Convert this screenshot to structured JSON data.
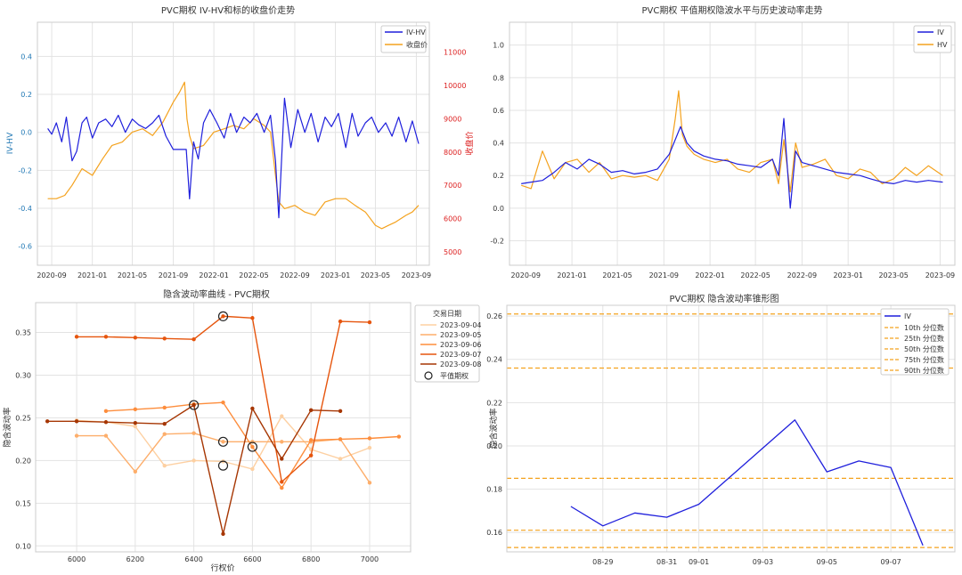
{
  "chart_data": [
    {
      "type": "line",
      "title": "PVC期权 IV-HV和标的收盘价走势",
      "ylabel": "IV-HV",
      "y2label": "收盘价",
      "xlim": [
        "2020-07-20",
        "2023-10-10"
      ],
      "ylim": [
        -0.7,
        0.58
      ],
      "y2lim": [
        4600,
        11900
      ],
      "x_ticks": [
        "2020-09",
        "2021-01",
        "2021-05",
        "2021-09",
        "2022-01",
        "2022-05",
        "2022-09",
        "2023-01",
        "2023-05",
        "2023-09"
      ],
      "y_ticks": [
        -0.6,
        -0.4,
        -0.2,
        0.0,
        0.2,
        0.4
      ],
      "y2_ticks": [
        5000,
        6000,
        7000,
        8000,
        9000,
        10000,
        11000
      ],
      "y_tick_labels": [
        "-0.6",
        "-0.4",
        "-0.2",
        "0.0",
        "0.2",
        "0.4"
      ],
      "y2_tick_labels": [
        "5000",
        "6000",
        "7000",
        "8000",
        "9000",
        "10000",
        "11000"
      ],
      "legend_position": "top-right",
      "grid": true,
      "series": [
        {
          "name": "IV-HV",
          "axis": "left",
          "color": "#1f1fdc",
          "x": [
            "2020-08-20",
            "2020-09-01",
            "2020-09-15",
            "2020-10-01",
            "2020-10-15",
            "2020-11-01",
            "2020-11-15",
            "2020-12-01",
            "2020-12-15",
            "2021-01-01",
            "2021-01-20",
            "2021-02-10",
            "2021-03-01",
            "2021-03-20",
            "2021-04-10",
            "2021-05-01",
            "2021-05-20",
            "2021-06-10",
            "2021-07-01",
            "2021-07-20",
            "2021-08-10",
            "2021-09-01",
            "2021-09-20",
            "2021-10-10",
            "2021-10-20",
            "2021-11-01",
            "2021-11-15",
            "2021-12-01",
            "2021-12-20",
            "2022-01-10",
            "2022-02-01",
            "2022-02-20",
            "2022-03-10",
            "2022-04-01",
            "2022-04-20",
            "2022-05-10",
            "2022-06-01",
            "2022-06-20",
            "2022-07-05",
            "2022-07-15",
            "2022-08-01",
            "2022-08-20",
            "2022-09-10",
            "2022-10-01",
            "2022-10-20",
            "2022-11-10",
            "2022-12-01",
            "2022-12-20",
            "2023-01-10",
            "2023-02-01",
            "2023-02-20",
            "2023-03-10",
            "2023-04-01",
            "2023-04-20",
            "2023-05-10",
            "2023-06-01",
            "2023-06-20",
            "2023-07-10",
            "2023-08-01",
            "2023-08-20",
            "2023-09-08"
          ],
          "y": [
            0.02,
            -0.01,
            0.05,
            -0.05,
            0.08,
            -0.15,
            -0.1,
            0.05,
            0.08,
            -0.03,
            0.05,
            0.07,
            0.03,
            0.09,
            0.0,
            0.07,
            0.04,
            0.02,
            0.05,
            0.09,
            -0.02,
            -0.09,
            -0.09,
            -0.09,
            -0.35,
            -0.05,
            -0.14,
            0.05,
            0.12,
            0.05,
            -0.03,
            0.1,
            0.0,
            0.08,
            0.05,
            0.1,
            0.0,
            0.09,
            -0.15,
            -0.45,
            0.18,
            -0.08,
            0.12,
            0.0,
            0.1,
            -0.05,
            0.08,
            0.03,
            0.1,
            -0.08,
            0.1,
            -0.02,
            0.05,
            0.08,
            0.0,
            0.05,
            -0.02,
            0.08,
            -0.05,
            0.06,
            -0.06
          ]
        },
        {
          "name": "收盘价",
          "axis": "right",
          "color": "#f4a21e",
          "x": [
            "2020-08-20",
            "2020-09-15",
            "2020-10-10",
            "2020-11-01",
            "2020-12-01",
            "2021-01-01",
            "2021-02-01",
            "2021-03-01",
            "2021-04-01",
            "2021-05-01",
            "2021-06-01",
            "2021-07-01",
            "2021-08-01",
            "2021-09-01",
            "2021-09-20",
            "2021-10-05",
            "2021-10-12",
            "2021-10-20",
            "2021-11-01",
            "2021-12-01",
            "2022-01-01",
            "2022-02-01",
            "2022-03-01",
            "2022-04-01",
            "2022-05-01",
            "2022-06-01",
            "2022-06-20",
            "2022-07-05",
            "2022-07-15",
            "2022-08-01",
            "2022-09-01",
            "2022-10-01",
            "2022-11-01",
            "2022-12-01",
            "2023-01-01",
            "2023-02-01",
            "2023-03-01",
            "2023-04-01",
            "2023-05-01",
            "2023-05-20",
            "2023-06-10",
            "2023-07-01",
            "2023-08-01",
            "2023-08-20",
            "2023-09-08"
          ],
          "y": [
            6600,
            6600,
            6700,
            7000,
            7500,
            7300,
            7800,
            8200,
            8300,
            8600,
            8700,
            8500,
            8900,
            9500,
            9800,
            10100,
            9000,
            8500,
            8100,
            8200,
            8600,
            8700,
            8800,
            8700,
            9000,
            8800,
            8600,
            7300,
            6500,
            6300,
            6400,
            6200,
            6100,
            6500,
            6600,
            6600,
            6400,
            6200,
            5800,
            5700,
            5800,
            5900,
            6100,
            6200,
            6400
          ]
        }
      ]
    },
    {
      "type": "line",
      "title": "PVC期权 平值期权隐波水平与历史波动率走势",
      "xlim": [
        "2020-07-20",
        "2023-10-10"
      ],
      "ylim": [
        -0.35,
        1.14
      ],
      "x_ticks": [
        "2020-09",
        "2021-01",
        "2021-05",
        "2021-09",
        "2022-01",
        "2022-05",
        "2022-09",
        "2023-01",
        "2023-05",
        "2023-09"
      ],
      "y_ticks": [
        -0.2,
        0.0,
        0.2,
        0.4,
        0.6,
        0.8,
        1.0
      ],
      "y_tick_labels": [
        "-0.2",
        "0.0",
        "0.2",
        "0.4",
        "0.6",
        "0.8",
        "1.0"
      ],
      "legend_position": "top-right",
      "grid": true,
      "series": [
        {
          "name": "IV",
          "color": "#1f1fdc",
          "x": [
            "2020-08-20",
            "2020-09-15",
            "2020-10-15",
            "2020-11-15",
            "2020-12-15",
            "2021-01-15",
            "2021-02-15",
            "2021-03-15",
            "2021-04-15",
            "2021-05-15",
            "2021-06-15",
            "2021-07-15",
            "2021-08-15",
            "2021-09-15",
            "2021-10-01",
            "2021-10-15",
            "2021-11-01",
            "2021-11-20",
            "2021-12-15",
            "2022-01-15",
            "2022-02-15",
            "2022-03-15",
            "2022-04-15",
            "2022-05-15",
            "2022-06-15",
            "2022-07-01",
            "2022-07-15",
            "2022-08-01",
            "2022-08-15",
            "2022-09-01",
            "2022-10-01",
            "2022-11-01",
            "2022-12-01",
            "2023-01-01",
            "2023-02-01",
            "2023-03-01",
            "2023-04-01",
            "2023-05-01",
            "2023-06-01",
            "2023-07-01",
            "2023-08-01",
            "2023-09-08"
          ],
          "y": [
            0.15,
            0.16,
            0.17,
            0.22,
            0.28,
            0.24,
            0.3,
            0.27,
            0.22,
            0.23,
            0.21,
            0.22,
            0.24,
            0.33,
            0.42,
            0.5,
            0.4,
            0.35,
            0.32,
            0.3,
            0.29,
            0.27,
            0.26,
            0.25,
            0.3,
            0.2,
            0.55,
            0.0,
            0.35,
            0.28,
            0.26,
            0.24,
            0.22,
            0.21,
            0.2,
            0.18,
            0.16,
            0.15,
            0.17,
            0.16,
            0.17,
            0.16
          ]
        },
        {
          "name": "HV",
          "color": "#f4a21e",
          "x": [
            "2020-08-20",
            "2020-09-15",
            "2020-10-15",
            "2020-11-15",
            "2020-12-15",
            "2021-01-15",
            "2021-02-15",
            "2021-03-15",
            "2021-04-15",
            "2021-05-15",
            "2021-06-15",
            "2021-07-15",
            "2021-08-15",
            "2021-09-15",
            "2021-10-01",
            "2021-10-10",
            "2021-10-20",
            "2021-11-01",
            "2021-11-20",
            "2021-12-15",
            "2022-01-15",
            "2022-02-15",
            "2022-03-15",
            "2022-04-15",
            "2022-05-15",
            "2022-06-15",
            "2022-07-01",
            "2022-07-15",
            "2022-08-01",
            "2022-08-15",
            "2022-09-01",
            "2022-10-01",
            "2022-11-01",
            "2022-12-01",
            "2023-01-01",
            "2023-02-01",
            "2023-03-01",
            "2023-04-01",
            "2023-05-01",
            "2023-06-01",
            "2023-07-01",
            "2023-08-01",
            "2023-09-08"
          ],
          "y": [
            0.14,
            0.12,
            0.35,
            0.18,
            0.28,
            0.3,
            0.22,
            0.28,
            0.18,
            0.2,
            0.19,
            0.2,
            0.17,
            0.3,
            0.55,
            0.72,
            0.45,
            0.38,
            0.33,
            0.3,
            0.28,
            0.3,
            0.24,
            0.22,
            0.28,
            0.3,
            0.15,
            0.42,
            0.1,
            0.4,
            0.25,
            0.27,
            0.3,
            0.2,
            0.18,
            0.24,
            0.22,
            0.15,
            0.18,
            0.25,
            0.2,
            0.26,
            0.2
          ]
        }
      ]
    },
    {
      "type": "line",
      "title": "隐含波动率曲线 - PVC期权",
      "xlabel": "行权价",
      "ylabel": "隐含波动率",
      "xlim": [
        5860,
        7140
      ],
      "ylim": [
        0.093,
        0.385
      ],
      "x_ticks": [
        6000,
        6200,
        6400,
        6600,
        6800,
        7000
      ],
      "y_ticks": [
        0.1,
        0.15,
        0.2,
        0.25,
        0.3,
        0.35
      ],
      "x_tick_labels": [
        "6000",
        "6200",
        "6400",
        "6600",
        "6800",
        "7000"
      ],
      "y_tick_labels": [
        "0.10",
        "0.15",
        "0.20",
        "0.25",
        "0.30",
        "0.35"
      ],
      "legend_title": "交易日期",
      "legend_position": "right-outside",
      "grid": true,
      "series": [
        {
          "name": "2023-09-04",
          "color": "#fdd0a2",
          "x": [
            6000,
            6100,
            6200,
            6300,
            6400,
            6500,
            6600,
            6700,
            6800,
            6900,
            7000
          ],
          "y": [
            0.247,
            0.245,
            0.24,
            0.194,
            0.2,
            0.199,
            0.19,
            0.252,
            0.213,
            0.202,
            0.215
          ]
        },
        {
          "name": "2023-09-05",
          "color": "#fdae6b",
          "x": [
            6000,
            6100,
            6200,
            6300,
            6400,
            6500,
            6600,
            6700,
            6800,
            6900,
            7000
          ],
          "y": [
            0.229,
            0.229,
            0.187,
            0.231,
            0.232,
            0.222,
            0.222,
            0.222,
            0.222,
            0.225,
            0.174
          ]
        },
        {
          "name": "2023-09-06",
          "color": "#fd8d3c",
          "x": [
            6100,
            6200,
            6300,
            6400,
            6500,
            6600,
            6700,
            6800,
            6900,
            7000,
            7100
          ],
          "y": [
            0.258,
            0.26,
            0.262,
            0.266,
            0.268,
            0.216,
            0.168,
            0.224,
            0.225,
            0.226,
            0.228
          ]
        },
        {
          "name": "2023-09-07",
          "color": "#e6550d",
          "x": [
            6000,
            6100,
            6200,
            6300,
            6400,
            6500,
            6600,
            6700,
            6800,
            6900,
            7000
          ],
          "y": [
            0.345,
            0.345,
            0.344,
            0.343,
            0.342,
            0.369,
            0.367,
            0.175,
            0.206,
            0.363,
            0.362
          ]
        },
        {
          "name": "2023-09-08",
          "color": "#a63603",
          "x": [
            5900,
            6000,
            6100,
            6200,
            6300,
            6400,
            6500,
            6600,
            6700,
            6800,
            6900
          ],
          "y": [
            0.246,
            0.246,
            0.245,
            0.244,
            0.243,
            0.265,
            0.114,
            0.261,
            0.202,
            0.259,
            0.258
          ]
        }
      ],
      "atm_points": {
        "name": "平值期权",
        "x": [
          6500,
          6500,
          6500,
          6600,
          6400
        ],
        "y": [
          0.194,
          0.222,
          0.369,
          0.216,
          0.265
        ]
      }
    },
    {
      "type": "line",
      "title": "PVC期权 隐含波动率锥形图",
      "ylabel": "隐含波动率",
      "xlim": [
        "2023-08-26",
        "2023-09-09"
      ],
      "ylim": [
        0.151,
        0.265
      ],
      "x_ticks": [
        "08-29",
        "08-31",
        "09-01",
        "09-03",
        "09-05",
        "09-07"
      ],
      "x_tick_dates": [
        "2023-08-29",
        "2023-08-31",
        "2023-09-01",
        "2023-09-03",
        "2023-09-05",
        "2023-09-07"
      ],
      "y_ticks": [
        0.16,
        0.18,
        0.2,
        0.22,
        0.24,
        0.26
      ],
      "y_tick_labels": [
        "0.16",
        "0.18",
        "0.20",
        "0.22",
        "0.24",
        "0.26"
      ],
      "legend_position": "top-right",
      "grid": true,
      "series": [
        {
          "name": "IV",
          "color": "#1f1fdc",
          "x": [
            "2023-08-28",
            "2023-08-29",
            "2023-08-30",
            "2023-08-31",
            "2023-09-01",
            "2023-09-02",
            "2023-09-03",
            "2023-09-04",
            "2023-09-05",
            "2023-09-06",
            "2023-09-07",
            "2023-09-08"
          ],
          "y": [
            0.172,
            0.163,
            0.169,
            0.167,
            0.173,
            0.186,
            0.199,
            0.212,
            0.188,
            0.193,
            0.19,
            0.154
          ]
        }
      ],
      "hlines": [
        {
          "name": "10th 分位数",
          "y": 0.153,
          "color": "#f4a21e"
        },
        {
          "name": "25th 分位数",
          "y": 0.161,
          "color": "#f4a21e"
        },
        {
          "name": "50th 分位数",
          "y": 0.185,
          "color": "#f4a21e"
        },
        {
          "name": "75th 分位数",
          "y": 0.236,
          "color": "#f4a21e"
        },
        {
          "name": "90th 分位数",
          "y": 0.261,
          "color": "#f4a21e"
        }
      ]
    }
  ]
}
